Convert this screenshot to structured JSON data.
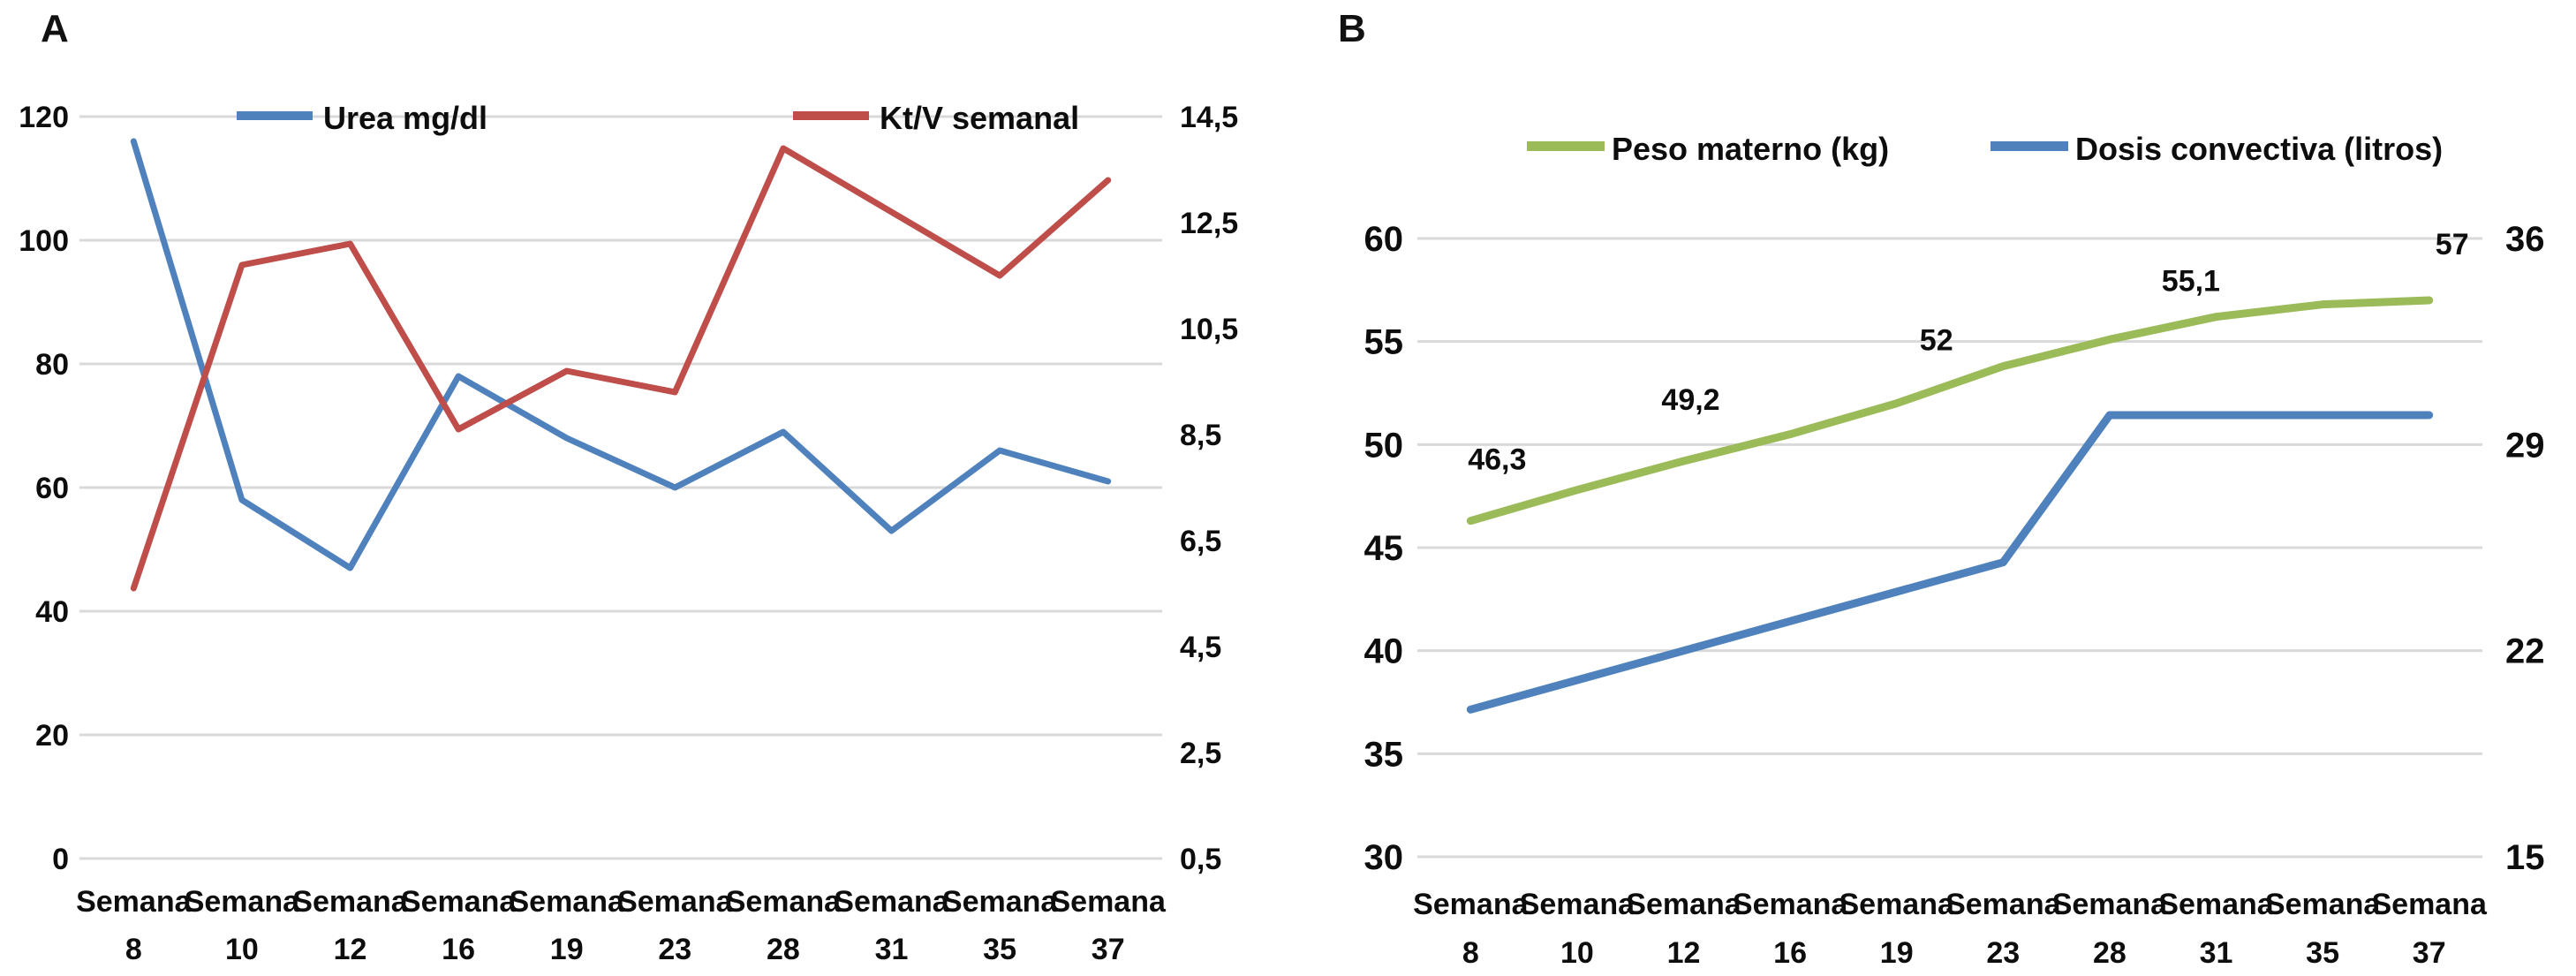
{
  "panels": [
    {
      "letter": "A"
    },
    {
      "letter": "B"
    }
  ],
  "chart_data": [
    {
      "type": "line",
      "panel": "A",
      "x_axis": {
        "prefix": "Semana",
        "values": [
          "8",
          "10",
          "12",
          "16",
          "19",
          "23",
          "28",
          "31",
          "35",
          "37"
        ]
      },
      "left_axis": {
        "min": 0,
        "max": 120,
        "tick_labels": [
          "120",
          "100",
          "80",
          "60",
          "40",
          "20",
          "0"
        ]
      },
      "right_axis": {
        "min": 0.5,
        "max": 14.5,
        "tick_labels": [
          "14,5",
          "12,5",
          "10,5",
          "8,5",
          "6,5",
          "4,5",
          "2,5",
          "0,5"
        ]
      },
      "grid": true,
      "legend_position": "top-inside",
      "series": [
        {
          "name": "Urea mg/dl",
          "color": "#4f81bd",
          "axis": "left",
          "values": [
            116,
            58,
            47,
            78,
            68,
            60,
            69,
            53,
            66,
            61
          ]
        },
        {
          "name": "Kt/V semanal",
          "color": "#bf4e4b",
          "axis": "right",
          "values": [
            5.6,
            11.7,
            12.1,
            8.6,
            9.7,
            9.3,
            13.9,
            12.7,
            11.5,
            13.3
          ]
        }
      ],
      "data_labels": []
    },
    {
      "type": "line",
      "panel": "B",
      "x_axis": {
        "prefix": "Semana",
        "values": [
          "8",
          "10",
          "12",
          "16",
          "19",
          "23",
          "28",
          "31",
          "35",
          "37"
        ]
      },
      "left_axis": {
        "min": 30,
        "max": 60,
        "tick_labels": [
          "60",
          "55",
          "50",
          "45",
          "40",
          "35",
          "30"
        ]
      },
      "right_axis": {
        "min": 15,
        "max": 36,
        "tick_labels": [
          "36",
          "29",
          "22",
          "15"
        ]
      },
      "grid": true,
      "legend_position": "top",
      "series": [
        {
          "name": "Peso materno (kg)",
          "color": "#9bbb59",
          "axis": "left",
          "values": [
            46.3,
            47.8,
            49.2,
            50.5,
            52,
            53.8,
            55.1,
            56.2,
            56.8,
            57
          ]
        },
        {
          "name": "Dosis convectiva (litros)",
          "color": "#4f81bd",
          "axis": "right",
          "values": [
            20,
            21,
            22,
            23,
            24,
            25,
            30,
            30,
            30,
            30
          ]
        }
      ],
      "data_labels": [
        {
          "series": 0,
          "index": 0,
          "text": "46,3"
        },
        {
          "series": 0,
          "index": 2,
          "text": "49,2"
        },
        {
          "series": 0,
          "index": 4,
          "text": "52"
        },
        {
          "series": 0,
          "index": 6,
          "text": "55,1"
        },
        {
          "series": 0,
          "index": 9,
          "text": "57"
        }
      ]
    }
  ],
  "colors": {
    "gridline": "#d9d9d9",
    "text": "#0d0d0d"
  }
}
